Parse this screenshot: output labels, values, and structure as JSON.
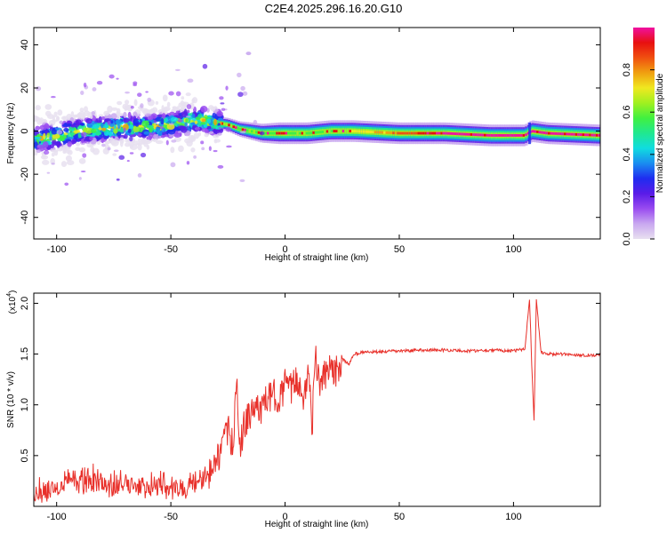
{
  "title": "C2E4.2025.296.16.20.G10",
  "colors": {
    "snr_line": "#e8302a",
    "axis": "#000000",
    "colormap": [
      "#e8e0f0",
      "#c9a8f0",
      "#9a4cf0",
      "#5a1ce8",
      "#1f2cf0",
      "#1a8cf0",
      "#10dce0",
      "#20e890",
      "#40f040",
      "#a0f020",
      "#f0e820",
      "#f0a010",
      "#f05010",
      "#e81010",
      "#f010a0"
    ]
  },
  "chart_data": [
    {
      "type": "heatmap",
      "title": "C2E4.2025.296.16.20.G10",
      "xlabel": "Height of straight line (km)",
      "ylabel": "Frequency (Hz)",
      "xlim": [
        -110,
        138
      ],
      "ylim": [
        -50,
        48
      ],
      "xticks": [
        -100,
        -50,
        0,
        50,
        100
      ],
      "xtick_labels": [
        "-100",
        "-50",
        "0",
        "50",
        "100"
      ],
      "yticks": [
        -40,
        -20,
        0,
        20,
        40
      ],
      "ytick_labels": [
        "-40",
        "-20",
        "0",
        "20",
        "40"
      ],
      "ridge": {
        "x": [
          -110,
          -100,
          -90,
          -80,
          -70,
          -60,
          -50,
          -40,
          -35,
          -30,
          -25,
          -20,
          -15,
          -10,
          0,
          10,
          20,
          30,
          50,
          70,
          90,
          105,
          108,
          115,
          138
        ],
        "y": [
          -4,
          -2,
          0,
          1,
          2,
          2,
          3,
          5,
          5,
          4,
          3,
          1,
          0,
          -1,
          -1,
          -1,
          0,
          0,
          -1,
          -1,
          -2,
          -2,
          0,
          -1,
          -2
        ]
      },
      "colorbar": {
        "label": "Normalized spectral amplitude",
        "range": [
          0,
          1
        ],
        "ticks": [
          0.0,
          0.2,
          0.4,
          0.6,
          0.8
        ],
        "tick_labels": [
          "0.0",
          "0.2",
          "0.4",
          "0.6",
          "0.8"
        ]
      }
    },
    {
      "type": "line",
      "xlabel": "Height of straight line (km)",
      "ylabel": "SNR (10 * v/v)",
      "y_multiplier": "(x10",
      "y_multiplier_exp": "4",
      "xlim": [
        -110,
        138
      ],
      "ylim": [
        0,
        21000
      ],
      "xticks": [
        -100,
        -50,
        0,
        50,
        100
      ],
      "xtick_labels": [
        "-100",
        "-50",
        "0",
        "50",
        "100"
      ],
      "yticks": [
        5000,
        10000,
        15000,
        20000
      ],
      "ytick_labels": [
        "0.5",
        "1.0",
        "1.5",
        "2.0"
      ],
      "series": [
        {
          "name": "SNR",
          "x": [
            -110,
            -105,
            -100,
            -95,
            -90,
            -85,
            -80,
            -75,
            -70,
            -65,
            -60,
            -55,
            -50,
            -45,
            -40,
            -35,
            -32,
            -30,
            -28,
            -25,
            -23,
            -21,
            -20,
            -18,
            -15,
            -12,
            -10,
            -8,
            -5,
            -2,
            0,
            3,
            5,
            8,
            10,
            12,
            13,
            15,
            18,
            20,
            22,
            25,
            28,
            30,
            35,
            40,
            50,
            60,
            70,
            80,
            90,
            100,
            105,
            107,
            108,
            109,
            110,
            112,
            115,
            120,
            130,
            138
          ],
          "values": [
            800,
            1200,
            1500,
            2500,
            1800,
            2200,
            2000,
            1500,
            1700,
            1800,
            1500,
            1600,
            1300,
            1400,
            1600,
            2500,
            3500,
            4500,
            5500,
            7500,
            6000,
            12000,
            5500,
            8000,
            9000,
            10000,
            9500,
            10500,
            11000,
            10800,
            12000,
            11500,
            12500,
            11000,
            13000,
            8000,
            15000,
            12000,
            13000,
            13500,
            13000,
            14500,
            14000,
            15000,
            15200,
            15200,
            15300,
            15400,
            15400,
            15300,
            15400,
            15300,
            15500,
            20500,
            14000,
            8500,
            20500,
            15200,
            15000,
            15000,
            14900,
            14900
          ]
        }
      ]
    }
  ]
}
